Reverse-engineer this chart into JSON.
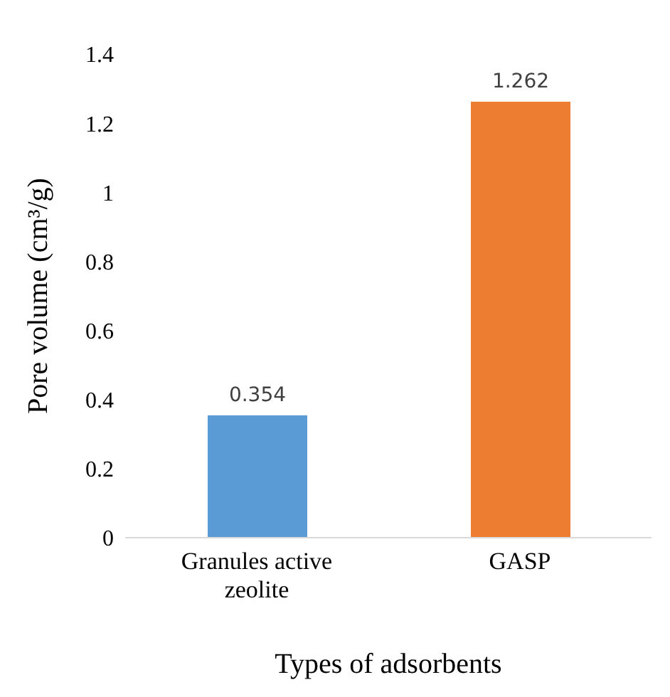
{
  "chart_data": {
    "type": "bar",
    "xlabel": "Types of adsorbents",
    "ylabel": "Pore volume (cm³/g)",
    "categories": [
      "Granules active zeolite",
      "GASP"
    ],
    "values": [
      0.354,
      1.262
    ],
    "colors": [
      "#5b9bd5",
      "#ed7d31"
    ],
    "ylim": [
      0,
      1.4
    ],
    "yticks": [
      0,
      0.2,
      0.4,
      0.6,
      0.8,
      1,
      1.2,
      1.4
    ],
    "grid": false,
    "data_labels": true,
    "legend": false
  }
}
